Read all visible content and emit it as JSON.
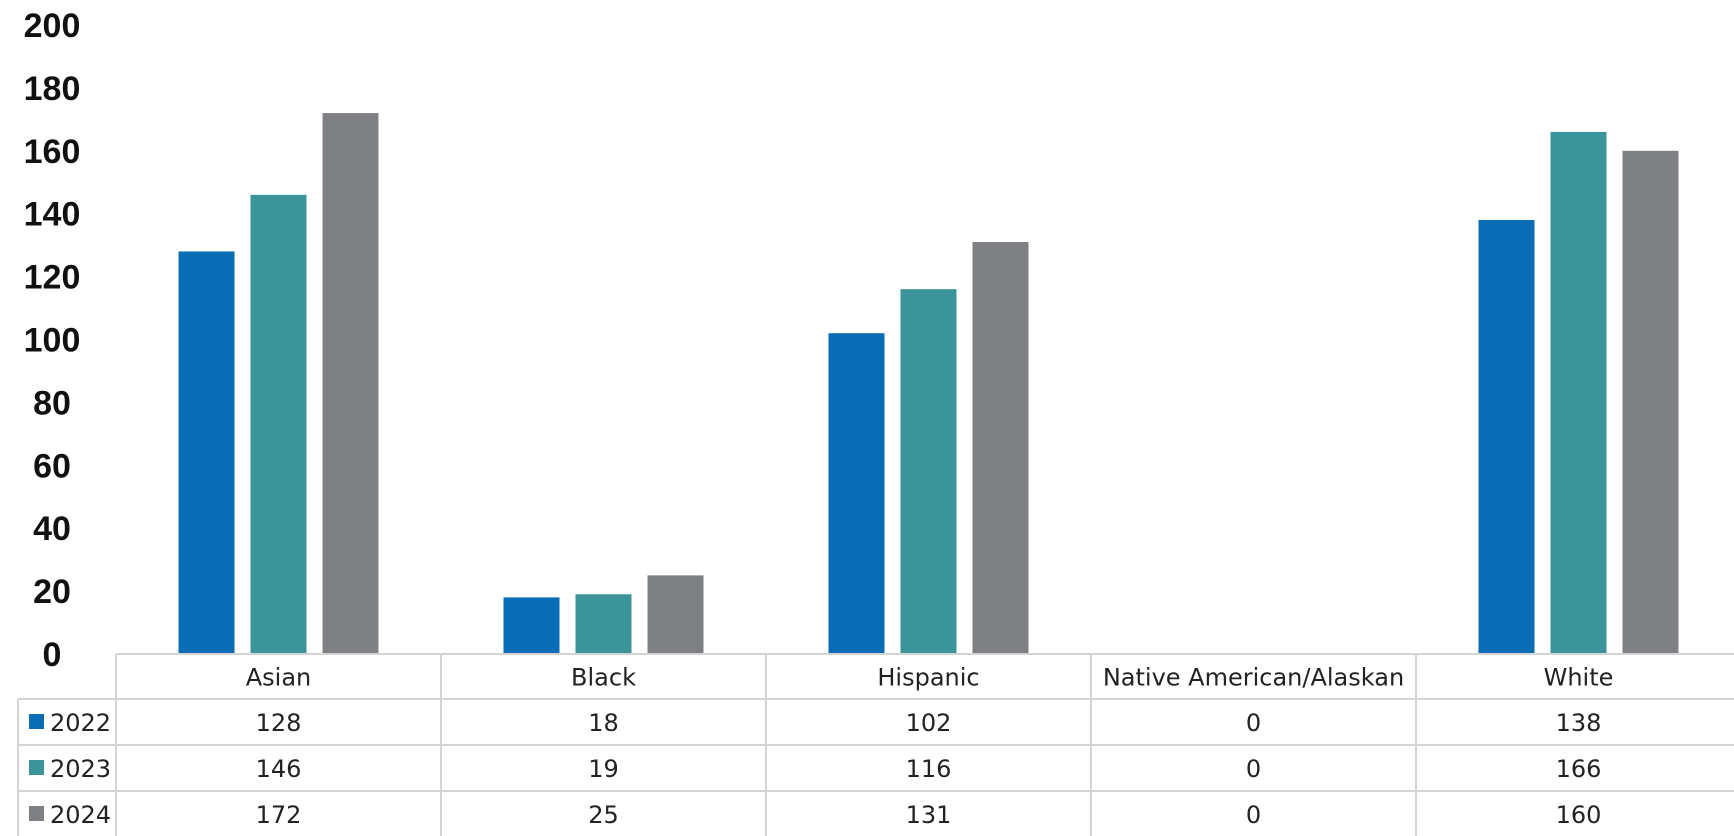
{
  "chart_data": {
    "type": "bar",
    "categories": [
      "Asian",
      "Black",
      "Hispanic",
      "Native American/Alaskan",
      "White"
    ],
    "series": [
      {
        "name": "2022",
        "color": "#0a6cb4",
        "values": [
          128,
          18,
          102,
          0,
          138
        ]
      },
      {
        "name": "2023",
        "color": "#3a9499",
        "values": [
          146,
          19,
          116,
          0,
          166
        ]
      },
      {
        "name": "2024",
        "color": "#7f8084",
        "values": [
          172,
          25,
          131,
          0,
          160
        ]
      }
    ],
    "y_ticks": [
      "0",
      "20",
      "40",
      "60",
      "80",
      "100",
      "120",
      "140",
      "160",
      "180",
      "200"
    ],
    "ylim": [
      0,
      200
    ],
    "data_table": true,
    "legend": "in-table-left"
  }
}
